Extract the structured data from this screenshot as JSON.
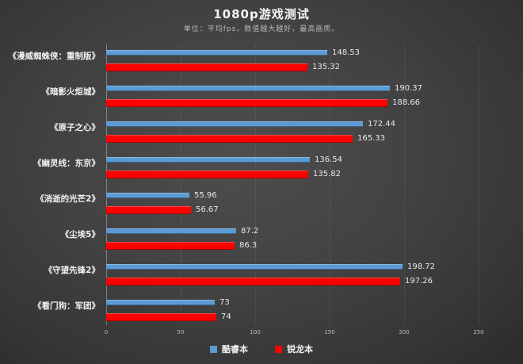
{
  "header": {
    "title": "1080p游戏测试",
    "subtitle": "单位：平均fps，数值越大越好，最高画质。"
  },
  "colors": {
    "series_blue": "#5b9bd5",
    "series_red": "#fe0000",
    "background_center": "#4e4e4e",
    "background_edge": "#2b2b2b",
    "text_primary": "#f2f2f2",
    "text_secondary": "#b9b9b9"
  },
  "legend": {
    "items": [
      {
        "label": "酷睿本",
        "color": "#5b9bd5"
      },
      {
        "label": "锐龙本",
        "color": "#fe0000"
      }
    ],
    "position": "bottom-center"
  },
  "chart_data": {
    "type": "bar",
    "orientation": "horizontal",
    "title": "1080p游戏测试",
    "subtitle": "单位：平均fps，数值越大越好，最高画质。",
    "categories": [
      "《漫威蜘蛛侠：重制版》",
      "《暗影火炬城》",
      "《原子之心》",
      "《幽灵线：东京》",
      "《消逝的光芒2》",
      "《尘埃5》",
      "《守望先锋2》",
      "《看门狗：军团》"
    ],
    "series": [
      {
        "name": "酷睿本",
        "color": "#5b9bd5",
        "values": [
          148.53,
          190.37,
          172.44,
          136.54,
          55.96,
          87.2,
          198.72,
          73
        ]
      },
      {
        "name": "锐龙本",
        "color": "#fe0000",
        "values": [
          135.32,
          188.66,
          165.33,
          135.82,
          56.67,
          86.3,
          197.26,
          74
        ]
      }
    ],
    "xlim": [
      0,
      250
    ],
    "xticks": [
      0,
      50,
      100,
      150,
      200,
      250
    ],
    "grid": "faint-vertical-gridlines",
    "value_labels": "shown right of each bar",
    "legend_position": "bottom"
  }
}
